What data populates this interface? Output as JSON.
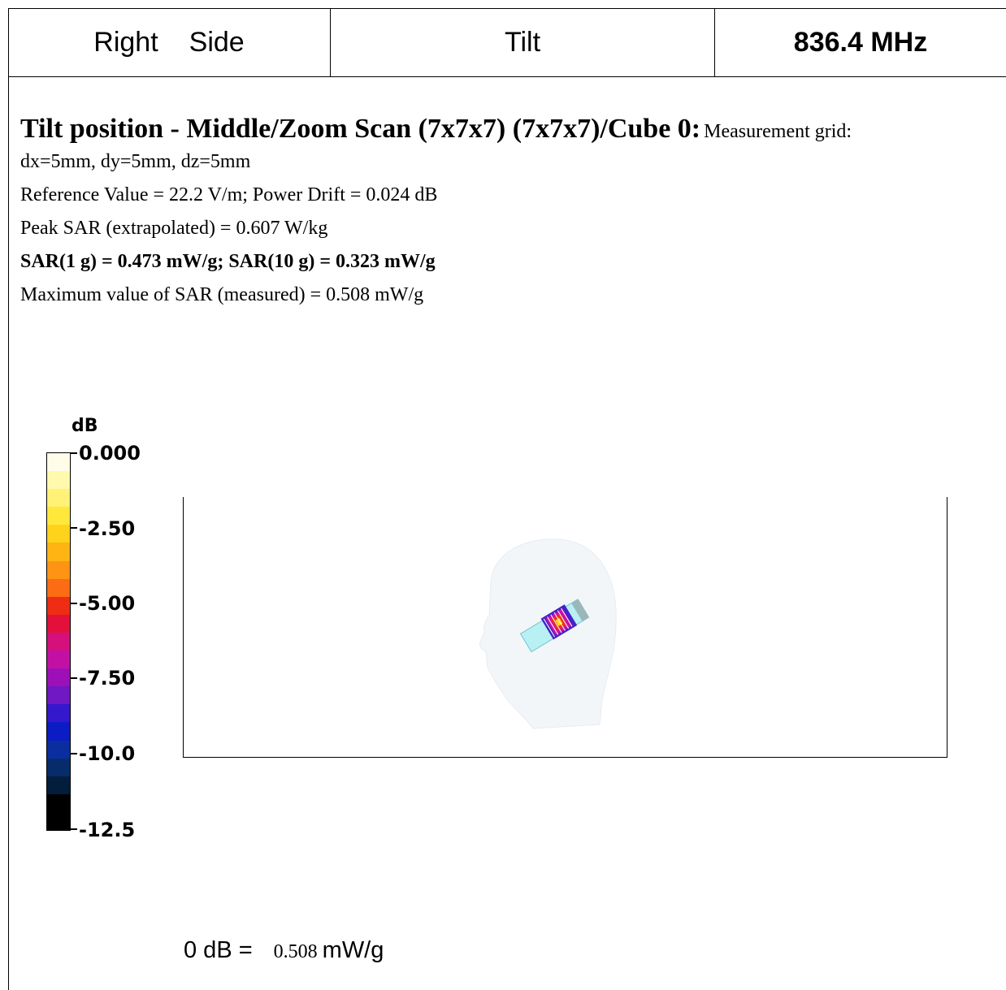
{
  "header": {
    "side_word1": "Right",
    "side_word2": "Side",
    "position": "Tilt",
    "frequency": "836.4 MHz"
  },
  "measurement": {
    "title": "Tilt position - Middle/Zoom Scan (7x7x7) (7x7x7)/Cube 0:",
    "grid_label": "Measurement grid:",
    "grid_values": "dx=5mm, dy=5mm, dz=5mm",
    "reference": "Reference Value = 22.2 V/m; Power Drift = 0.024 dB",
    "peak_sar": "Peak SAR (extrapolated) = 0.607 W/kg",
    "sar_summary": "SAR(1 g) = 0.473 mW/g; SAR(10 g) = 0.323 mW/g",
    "max_sar": "Maximum value of SAR (measured) = 0.508 mW/g"
  },
  "scale": {
    "unit": "dB",
    "labels": [
      "0.000",
      "-2.50",
      "-5.00",
      "-7.50",
      "-10.0",
      "-12.5"
    ],
    "colors": [
      "#fffde8",
      "#fff9ae",
      "#fff276",
      "#ffe83c",
      "#ffd21c",
      "#ffb414",
      "#ff9414",
      "#fb6c14",
      "#ef2c14",
      "#e3103c",
      "#d3107c",
      "#c310a4",
      "#9d10b8",
      "#6f18c4",
      "#3418cc",
      "#0c1cc4",
      "#0a2ea0",
      "#062c6c",
      "#031e3c",
      "#000000",
      "#000000"
    ]
  },
  "zero_db": {
    "prefix": "0 dB =",
    "value": "0.508",
    "unit": "mW/g"
  }
}
